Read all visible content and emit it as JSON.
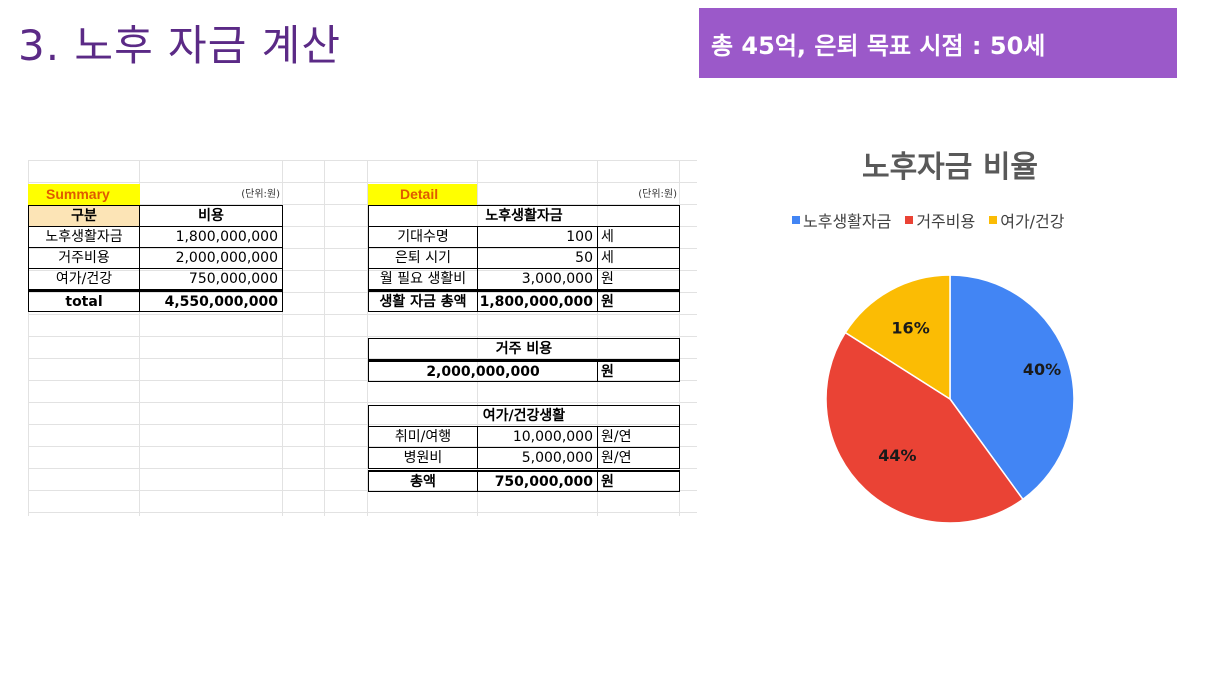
{
  "title": "3. 노후 자금 계산",
  "badge": "총 45억, 은퇴 목표 시점 : 50세",
  "summary": {
    "header": "Summary",
    "unit": "(단위:원)",
    "col1": "구분",
    "col2": "비용",
    "rows": [
      {
        "label": "노후생활자금",
        "value": "1,800,000,000"
      },
      {
        "label": "거주비용",
        "value": "2,000,000,000"
      },
      {
        "label": "여가/건강",
        "value": "750,000,000"
      }
    ],
    "total_label": "total",
    "total_value": "4,550,000,000"
  },
  "detail": {
    "header": "Detail",
    "unit": "(단위:원)",
    "living": {
      "title": "노후생활자금",
      "rows": [
        {
          "label": "기대수명",
          "value": "100",
          "unit": "세"
        },
        {
          "label": "은퇴 시기",
          "value": "50",
          "unit": "세"
        },
        {
          "label": "월 필요 생활비",
          "value": "3,000,000",
          "unit": "원"
        },
        {
          "label": "생활 자금 총액",
          "value": "1,800,000,000",
          "unit": "원"
        }
      ]
    },
    "housing": {
      "title": "거주 비용",
      "value": "2,000,000,000",
      "unit": "원"
    },
    "leisure": {
      "title": "여가/건강생활",
      "rows": [
        {
          "label": "취미/여행",
          "value": "10,000,000",
          "unit": "원/연"
        },
        {
          "label": "병원비",
          "value": "5,000,000",
          "unit": "원/연"
        },
        {
          "label": "총액",
          "value": "750,000,000",
          "unit": "원"
        }
      ]
    }
  },
  "chart_data": {
    "type": "pie",
    "title": "노후자금 비율",
    "legend_position": "top",
    "categories": [
      "노후생활자금",
      "거주비용",
      "여가/건강"
    ],
    "values": [
      40,
      44,
      16
    ],
    "labels": [
      "40%",
      "44%",
      "16%"
    ],
    "colors": [
      "#4285f4",
      "#ea4335",
      "#fbbc04"
    ]
  }
}
